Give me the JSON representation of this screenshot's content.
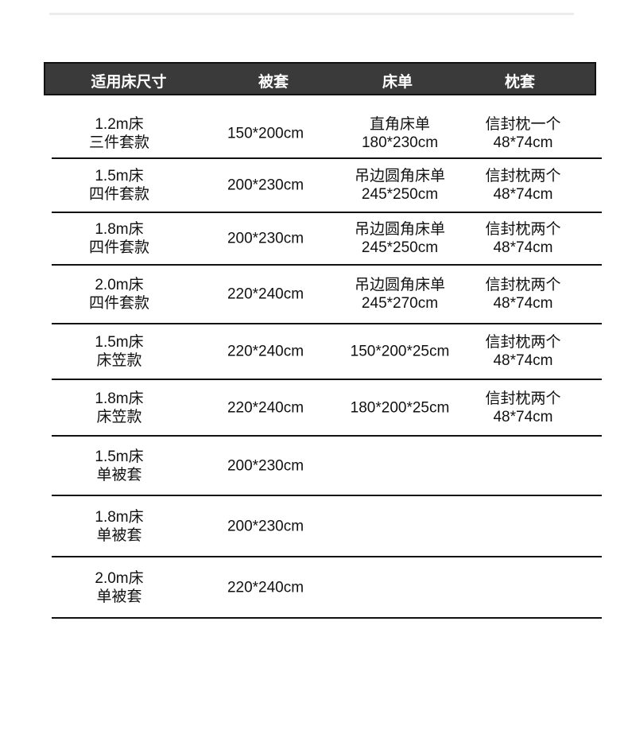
{
  "headers": [
    "适用床尺寸",
    "被套",
    "床单",
    "枕套"
  ],
  "rows": [
    {
      "size": [
        "1.2m床",
        "三件套款"
      ],
      "duvet": "150*200cm",
      "sheet": [
        "直角床单",
        "180*230cm"
      ],
      "pillow": [
        "信封枕一个",
        "48*74cm"
      ]
    },
    {
      "size": [
        "1.5m床",
        "四件套款"
      ],
      "duvet": "200*230cm",
      "sheet": [
        "吊边圆角床单",
        "245*250cm"
      ],
      "pillow": [
        "信封枕两个",
        "48*74cm"
      ]
    },
    {
      "size": [
        "1.8m床",
        "四件套款"
      ],
      "duvet": "200*230cm",
      "sheet": [
        "吊边圆角床单",
        "245*250cm"
      ],
      "pillow": [
        "信封枕两个",
        "48*74cm"
      ]
    },
    {
      "size": [
        "2.0m床",
        "四件套款"
      ],
      "duvet": "220*240cm",
      "sheet": [
        "吊边圆角床单",
        "245*270cm"
      ],
      "pillow": [
        "信封枕两个",
        "48*74cm"
      ]
    },
    {
      "size": [
        "1.5m床",
        "床笠款"
      ],
      "duvet": "220*240cm",
      "sheet": [
        "150*200*25cm"
      ],
      "pillow": [
        "信封枕两个",
        "48*74cm"
      ]
    },
    {
      "size": [
        "1.8m床",
        "床笠款"
      ],
      "duvet": "220*240cm",
      "sheet": [
        "180*200*25cm"
      ],
      "pillow": [
        "信封枕两个",
        "48*74cm"
      ]
    },
    {
      "size": [
        "1.5m床",
        "单被套"
      ],
      "duvet": "200*230cm",
      "sheet": [],
      "pillow": []
    },
    {
      "size": [
        "1.8m床",
        "单被套"
      ],
      "duvet": "200*230cm",
      "sheet": [],
      "pillow": []
    },
    {
      "size": [
        "2.0m床",
        "单被套"
      ],
      "duvet": "220*240cm",
      "sheet": [],
      "pillow": []
    }
  ]
}
